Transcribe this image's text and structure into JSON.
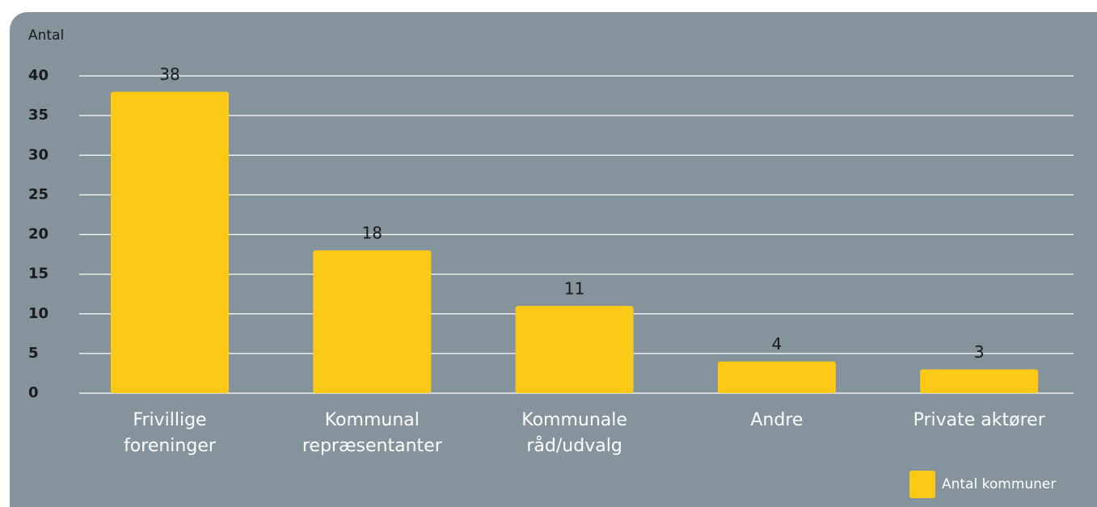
{
  "chart_data": {
    "type": "bar",
    "y_label": "Antal",
    "categories": [
      "Frivillige foreninger",
      "Kommunal repræsentanter",
      "Kommunale råd/udvalg",
      "Andre",
      "Private aktører"
    ],
    "series": [
      {
        "name": "Antal kommuner",
        "color": "#fcc917",
        "values": [
          38,
          18,
          11,
          4,
          3
        ]
      }
    ],
    "ylim": [
      0,
      40
    ],
    "yticks": [
      0,
      5,
      10,
      15,
      20,
      25,
      30,
      35,
      40
    ],
    "grid": true,
    "legend": "bottom-right"
  }
}
